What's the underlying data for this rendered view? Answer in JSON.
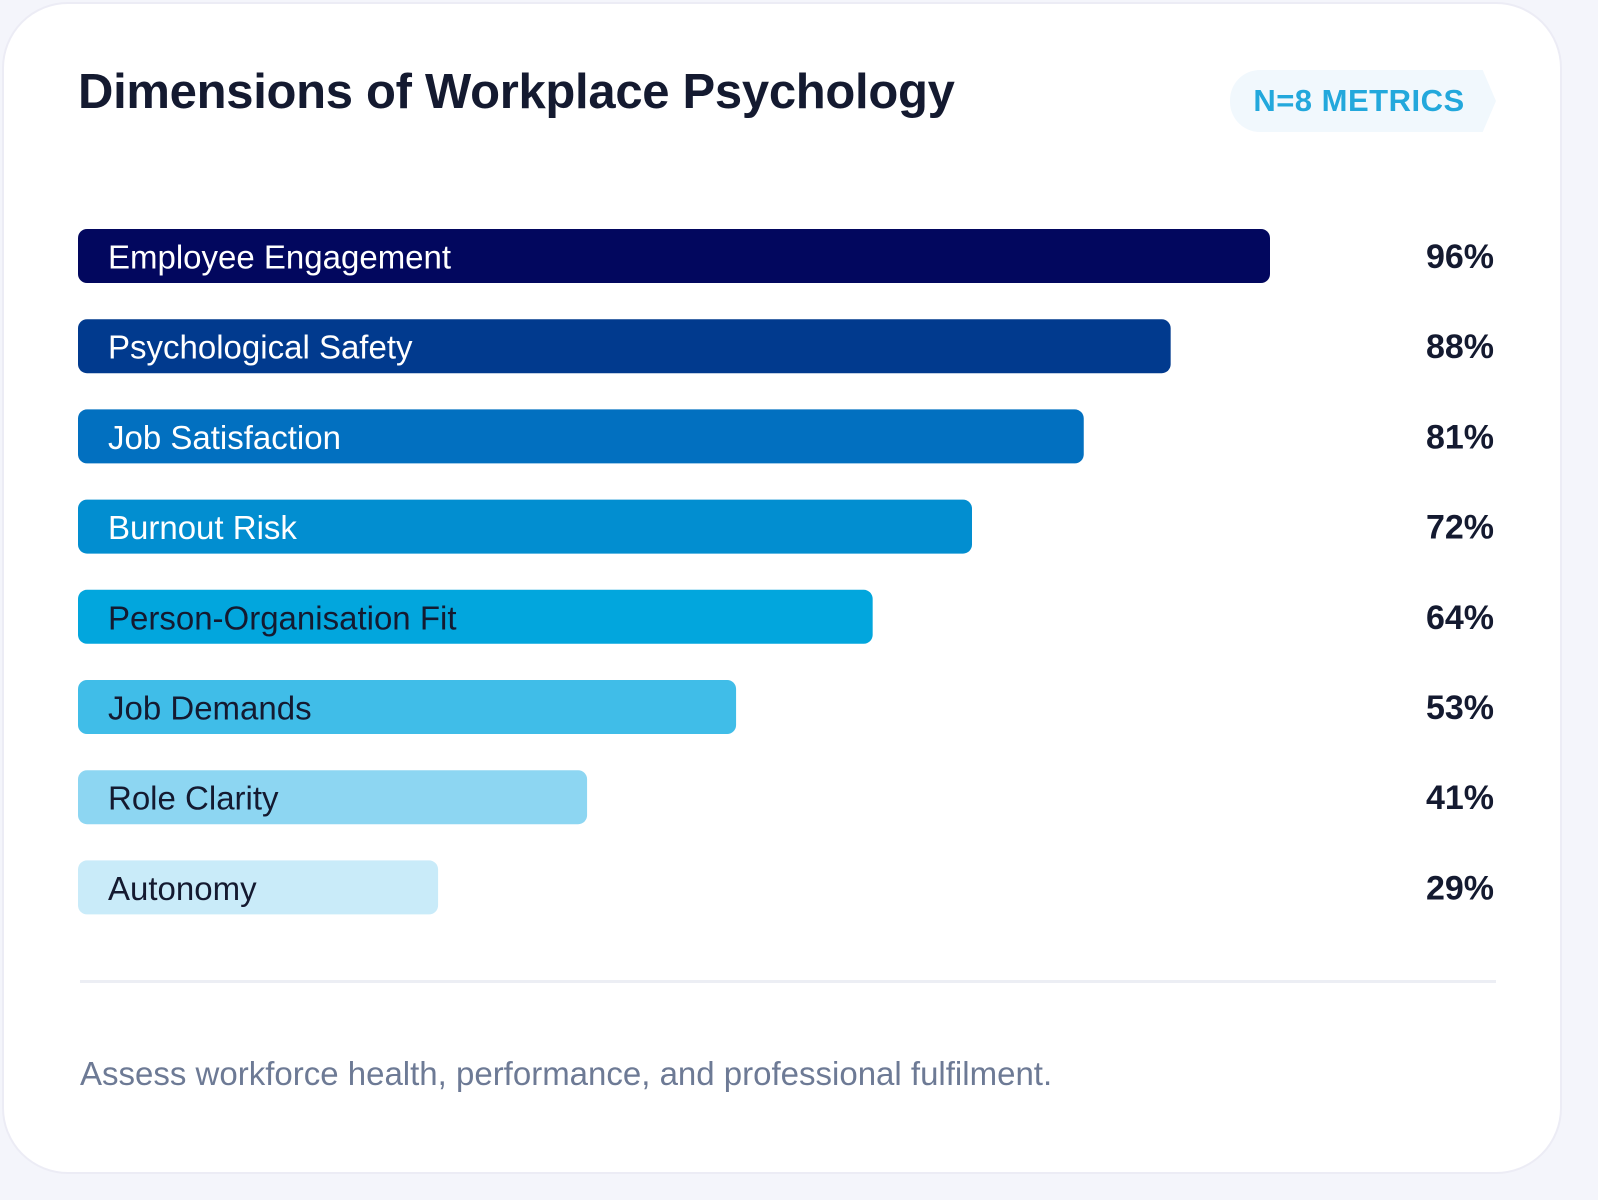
{
  "header": {
    "title": "Dimensions of Workplace Psychology",
    "badge": "N=8 METRICS"
  },
  "footer": {
    "caption": "Assess workforce health, performance, and professional fulfilment."
  },
  "chart_data": {
    "type": "bar",
    "orientation": "horizontal",
    "categories": [
      "Employee Engagement",
      "Psychological Safety",
      "Job Satisfaction",
      "Burnout Risk",
      "Person-Organisation Fit",
      "Job Demands",
      "Role Clarity",
      "Autonomy"
    ],
    "values": [
      96,
      88,
      81,
      72,
      64,
      53,
      41,
      29
    ],
    "value_labels": [
      "96%",
      "88%",
      "81%",
      "72%",
      "64%",
      "53%",
      "41%",
      "29%"
    ],
    "unit": "%",
    "colors": [
      "#02075e",
      "#013a8e",
      "#0270c0",
      "#028ed0",
      "#02a6dd",
      "#40bde8",
      "#8dd6f2",
      "#c9ebf9"
    ],
    "label_colors": [
      "#ffffff",
      "#ffffff",
      "#ffffff",
      "#ffffff",
      "#141a30",
      "#141a30",
      "#141a30",
      "#141a30"
    ],
    "grid": false,
    "legend": "none"
  }
}
